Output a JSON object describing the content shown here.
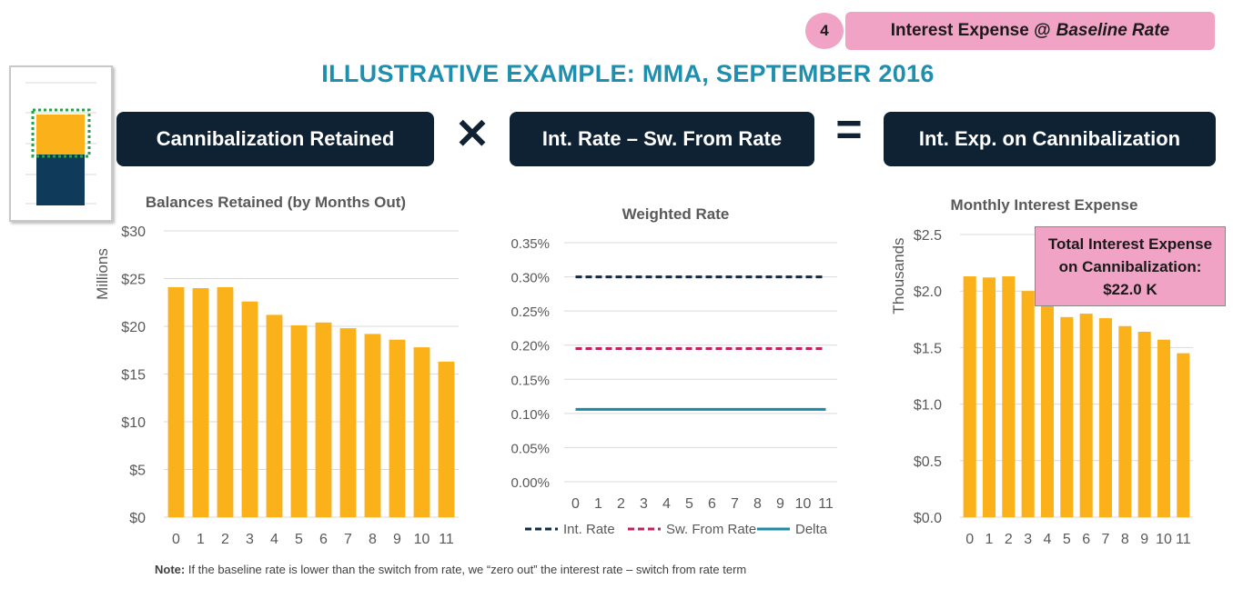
{
  "header": {
    "step_number": "4",
    "step_label_prefix": "Interest Expense @",
    "step_label_emph": "Baseline Rate",
    "title": "ILLUSTRATIVE EXAMPLE: MMA, SEPTEMBER 2016"
  },
  "equation": {
    "left": "Cannibalization Retained",
    "times": "✕",
    "middle": "Int. Rate – Sw. From Rate",
    "equals": "=",
    "right": "Int. Exp. on Cannibalization"
  },
  "callout": {
    "line1": "Total Interest Expense",
    "line2": "on Cannibalization:",
    "line3": "$22.0 K"
  },
  "note": {
    "label": "Note:",
    "text": "If the baseline rate is lower than the switch from rate, we “zero out” the interest rate – switch from rate term"
  },
  "colors": {
    "bar": "#fbb11a",
    "navy": "#0f2233",
    "teal": "#1e8fae",
    "pink": "#f0a3c4",
    "magenta": "#c0215f",
    "delta": "#1b8aa6"
  },
  "chart_data": [
    {
      "type": "bar",
      "title": "Balances Retained (by Months Out)",
      "ylabel": "Millions",
      "categories": [
        "0",
        "1",
        "2",
        "3",
        "4",
        "5",
        "6",
        "7",
        "8",
        "9",
        "10",
        "11"
      ],
      "values": [
        24.1,
        24.0,
        24.1,
        22.6,
        21.2,
        20.1,
        20.4,
        19.8,
        19.2,
        18.6,
        17.8,
        16.3
      ],
      "ylim": [
        0,
        30
      ],
      "yticks": [
        0,
        5,
        10,
        15,
        20,
        25,
        30
      ],
      "ytick_labels": [
        "$0",
        "$5",
        "$10",
        "$15",
        "$20",
        "$25",
        "$30"
      ],
      "grid": true
    },
    {
      "type": "line",
      "title": "Weighted Rate",
      "categories": [
        "0",
        "1",
        "2",
        "3",
        "4",
        "5",
        "6",
        "7",
        "8",
        "9",
        "10",
        "11"
      ],
      "series": [
        {
          "name": "Int. Rate",
          "values": [
            0.3,
            0.3,
            0.3,
            0.3,
            0.3,
            0.3,
            0.3,
            0.3,
            0.3,
            0.3,
            0.3,
            0.3
          ],
          "color": "#0f2a44",
          "dash": true
        },
        {
          "name": "Sw. From Rate",
          "values": [
            0.195,
            0.195,
            0.195,
            0.195,
            0.195,
            0.195,
            0.195,
            0.195,
            0.195,
            0.195,
            0.195,
            0.195
          ],
          "color": "#c0215f",
          "dash": true
        },
        {
          "name": "Delta",
          "values": [
            0.106,
            0.106,
            0.106,
            0.106,
            0.106,
            0.106,
            0.106,
            0.106,
            0.106,
            0.106,
            0.106,
            0.106
          ],
          "color": "#1b8aa6",
          "dash": false
        }
      ],
      "ylim": [
        0,
        0.35
      ],
      "yticks": [
        0,
        0.05,
        0.1,
        0.15,
        0.2,
        0.25,
        0.3,
        0.35
      ],
      "ytick_labels": [
        "0.00%",
        "0.05%",
        "0.10%",
        "0.15%",
        "0.20%",
        "0.25%",
        "0.30%",
        "0.35%"
      ],
      "legend": "bottom",
      "grid": true
    },
    {
      "type": "bar",
      "title": "Monthly Interest Expense",
      "ylabel": "Thousands",
      "categories": [
        "0",
        "1",
        "2",
        "3",
        "4",
        "5",
        "6",
        "7",
        "8",
        "9",
        "10",
        "11"
      ],
      "values": [
        2.13,
        2.12,
        2.13,
        2.0,
        1.88,
        1.77,
        1.8,
        1.76,
        1.69,
        1.64,
        1.57,
        1.45
      ],
      "ylim": [
        0,
        2.5
      ],
      "yticks": [
        0,
        0.5,
        1.0,
        1.5,
        2.0,
        2.5
      ],
      "ytick_labels": [
        "$0.0",
        "$0.5",
        "$1.0",
        "$1.5",
        "$2.0",
        "$2.5"
      ],
      "grid": true
    }
  ]
}
